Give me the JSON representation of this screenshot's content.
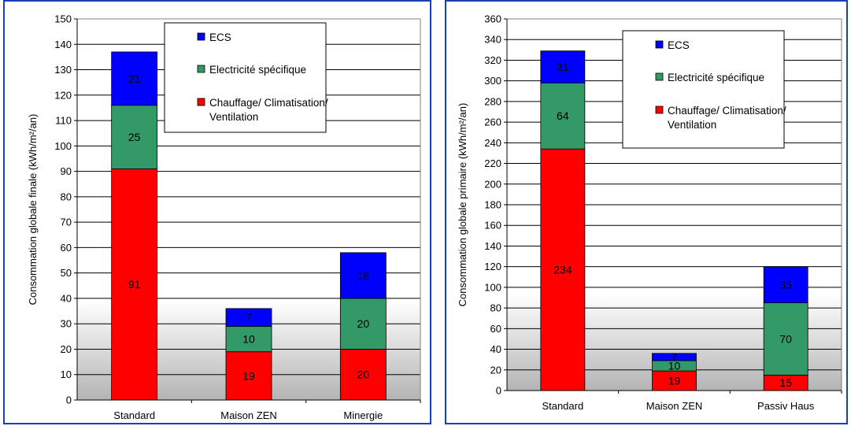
{
  "chart_data": [
    {
      "type": "bar",
      "stacked": true,
      "ylabel": "Consommation globale finale (kWh/m²/an)",
      "xlabel": "",
      "ylim": [
        0,
        150
      ],
      "ytick_step": 10,
      "categories": [
        "Standard",
        "Maison ZEN",
        "Minergie"
      ],
      "series": [
        {
          "name": "Chauffage/ Climatisation/ Ventilation",
          "color": "#ff0000",
          "values": [
            91,
            19,
            20
          ]
        },
        {
          "name": "Electricité spécifique",
          "color": "#339966",
          "values": [
            25,
            10,
            20
          ]
        },
        {
          "name": "ECS",
          "color": "#0000ff",
          "values": [
            21,
            7,
            18
          ]
        }
      ],
      "legend": {
        "position": "top-right",
        "order": [
          "ECS",
          "Electricité spécifique",
          "Chauffage/ Climatisation/ Ventilation"
        ]
      },
      "grid": true,
      "background_band": {
        "from": 0,
        "to": 39
      }
    },
    {
      "type": "bar",
      "stacked": true,
      "ylabel": "Consommation globale primaire (kWh/m²/an)",
      "xlabel": "",
      "ylim": [
        0,
        360
      ],
      "ytick_step": 20,
      "categories": [
        "Standard",
        "Maison ZEN",
        "Passiv Haus"
      ],
      "series": [
        {
          "name": "Chauffage/ Climatisation/ Ventilation",
          "color": "#ff0000",
          "values": [
            234,
            19,
            15
          ]
        },
        {
          "name": "Electricité spécifique",
          "color": "#339966",
          "values": [
            64,
            10,
            70
          ]
        },
        {
          "name": "ECS",
          "color": "#0000ff",
          "values": [
            31,
            7,
            35
          ]
        }
      ],
      "legend": {
        "position": "top-right",
        "order": [
          "ECS",
          "Electricité spécifique",
          "Chauffage/ Climatisation/ Ventilation"
        ]
      },
      "grid": true,
      "background_band": {
        "from": 0,
        "to": 93
      }
    }
  ]
}
